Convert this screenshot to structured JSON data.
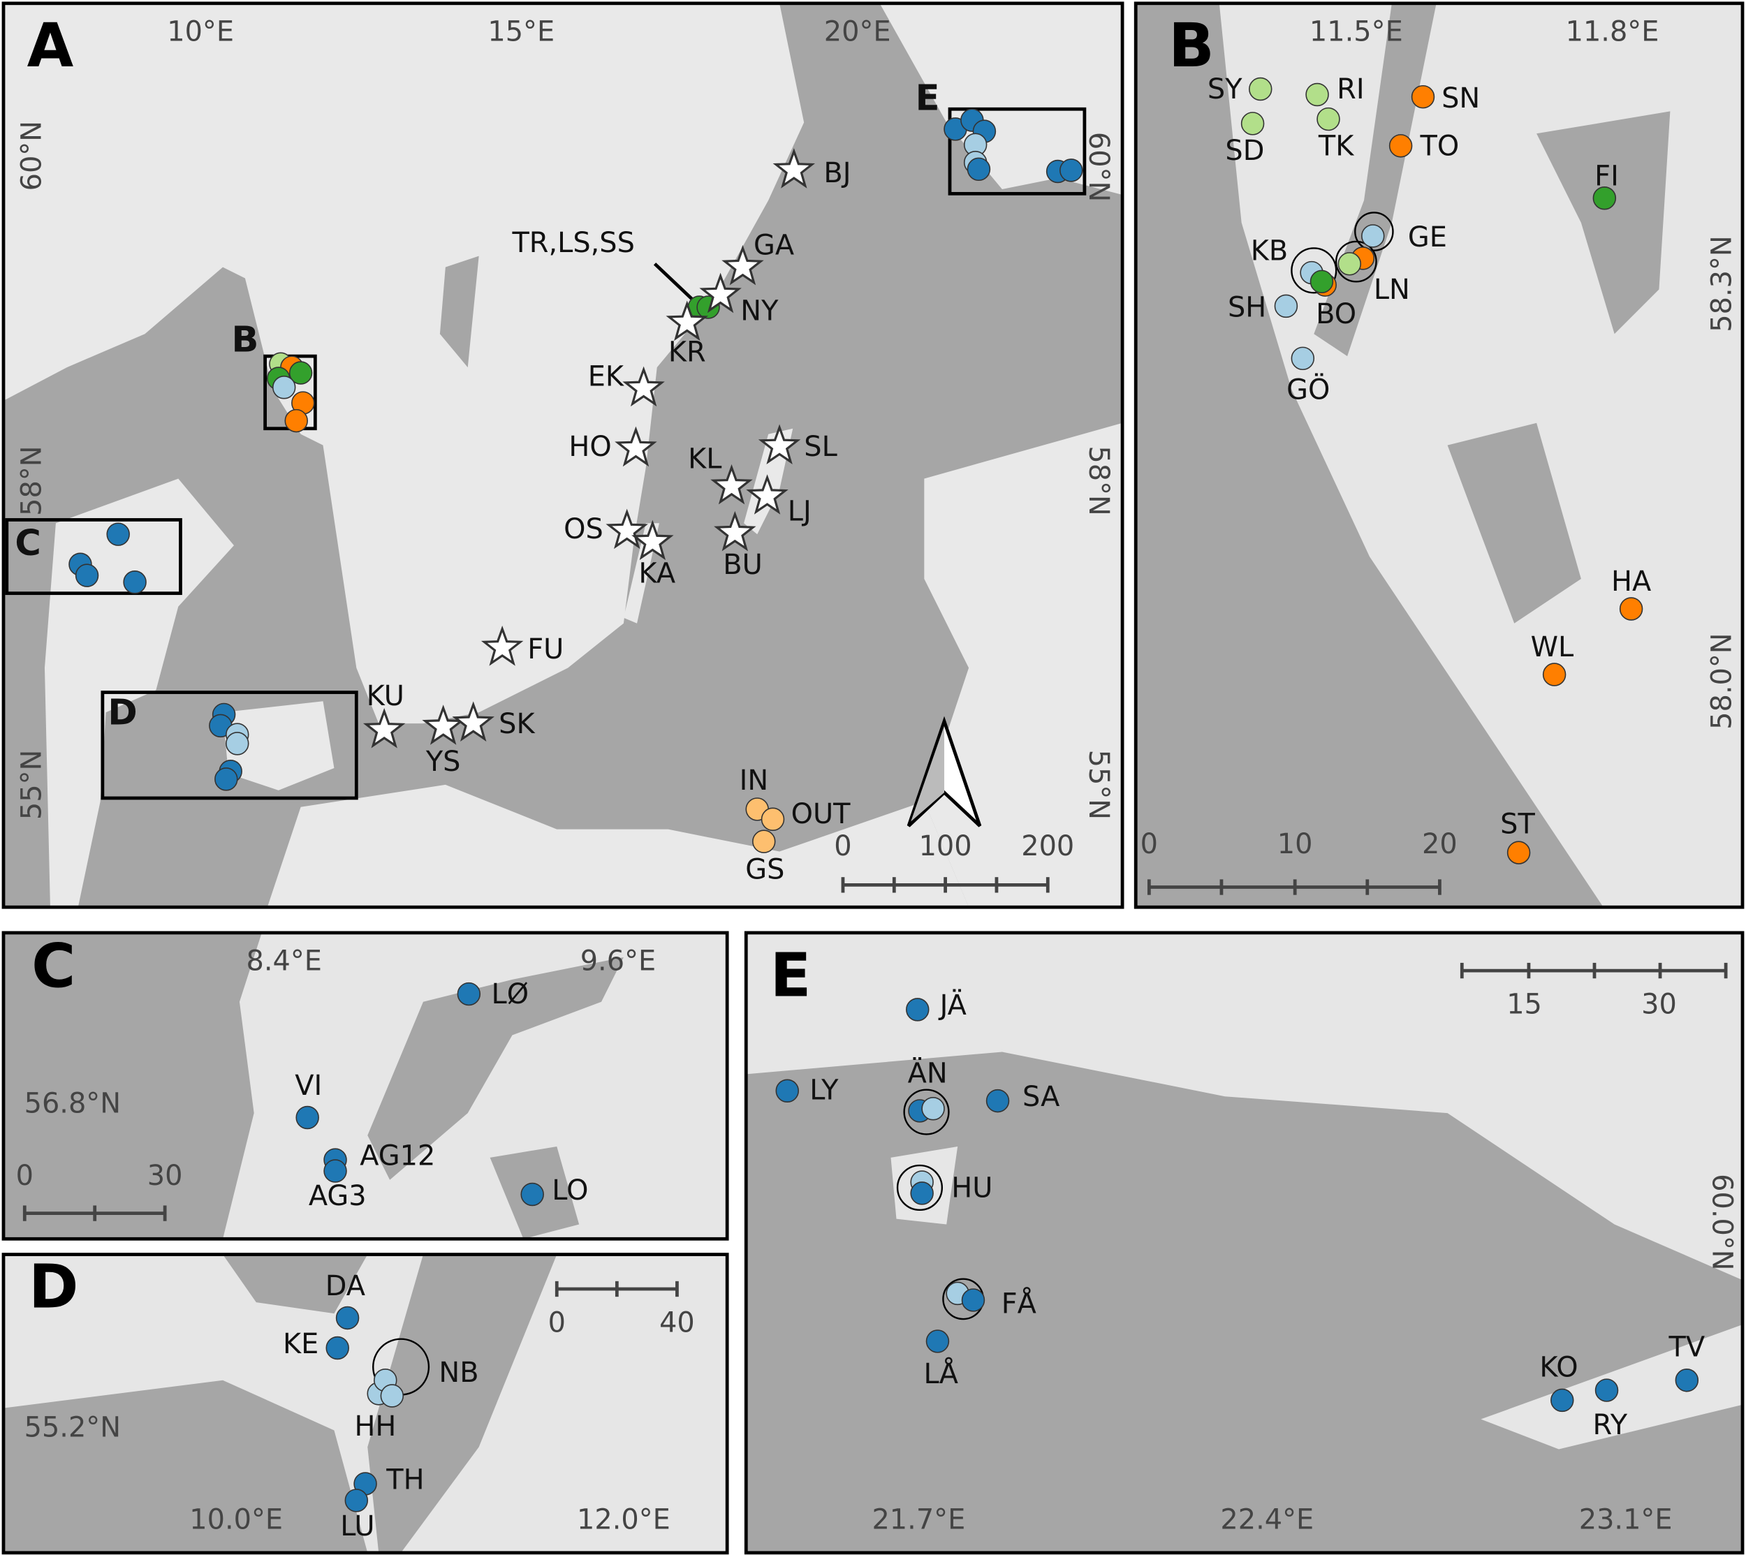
{
  "panels": [
    {
      "letter": "A",
      "lon_labels": [
        "10°E",
        "15°E",
        "20°E"
      ],
      "lat_labels": [
        "60°N",
        "58°N",
        "55°N",
        "60°N",
        "58°N",
        "55°N"
      ],
      "inset_labels": [
        "B",
        "C",
        "D",
        "E"
      ],
      "stars": [
        "BJ",
        "GA",
        "NY",
        "KR",
        "TR,LS,SS",
        "EK",
        "HO",
        "KL",
        "SL",
        "LJ",
        "OS",
        "KA",
        "BU",
        "FU",
        "KU",
        "YS",
        "SK"
      ],
      "sites": [
        {
          "label": "IN",
          "color": "#fdbf6f"
        },
        {
          "label": "OUT",
          "color": "#fdbf6f"
        },
        {
          "label": "GS",
          "color": "#fdbf6f"
        }
      ],
      "scale_labels": [
        "0",
        "100",
        "200"
      ]
    },
    {
      "letter": "B",
      "lon_labels": [
        "11.5°E",
        "11.8°E"
      ],
      "lat_labels": [
        "58.3°N",
        "58.0°N"
      ],
      "sites": [
        {
          "label": "SY",
          "color": "#b2df8a"
        },
        {
          "label": "RI",
          "color": "#b2df8a"
        },
        {
          "label": "SN",
          "color": "#ff7f00"
        },
        {
          "label": "SD",
          "color": "#b2df8a"
        },
        {
          "label": "TK",
          "color": "#b2df8a"
        },
        {
          "label": "TO",
          "color": "#ff7f00"
        },
        {
          "label": "FI",
          "color": "#33a02c"
        },
        {
          "label": "GE",
          "color": "#a6cee3"
        },
        {
          "label": "KB",
          "color": "#a6cee3"
        },
        {
          "label": "LN",
          "color": "#b2df8a"
        },
        {
          "label": "SH",
          "color": "#a6cee3"
        },
        {
          "label": "BO",
          "color": "#33a02c"
        },
        {
          "label": "GÖ",
          "color": "#a6cee3"
        },
        {
          "label": "HA",
          "color": "#ff7f00"
        },
        {
          "label": "WL",
          "color": "#ff7f00"
        },
        {
          "label": "ST",
          "color": "#ff7f00"
        }
      ],
      "scale_labels": [
        "0",
        "10",
        "20"
      ]
    },
    {
      "letter": "C",
      "lon_labels": [
        "8.4°E",
        "9.6°E"
      ],
      "lat_labels": [
        "56.8°N"
      ],
      "sites": [
        {
          "label": "LØ",
          "color": "#1f78b4"
        },
        {
          "label": "VI",
          "color": "#1f78b4"
        },
        {
          "label": "AG12",
          "color": "#1f78b4"
        },
        {
          "label": "AG3",
          "color": "#1f78b4"
        },
        {
          "label": "LO",
          "color": "#1f78b4"
        }
      ],
      "scale_labels": [
        "0",
        "30"
      ]
    },
    {
      "letter": "D",
      "lon_labels": [
        "10.0°E",
        "12.0°E"
      ],
      "lat_labels": [
        "55.2°N"
      ],
      "sites": [
        {
          "label": "DA",
          "color": "#1f78b4"
        },
        {
          "label": "KE",
          "color": "#1f78b4"
        },
        {
          "label": "NB",
          "color": "#a6cee3"
        },
        {
          "label": "HH",
          "color": "#a6cee3"
        },
        {
          "label": "TH",
          "color": "#1f78b4"
        },
        {
          "label": "LU",
          "color": "#1f78b4"
        }
      ],
      "scale_labels": [
        "0",
        "40"
      ]
    },
    {
      "letter": "E",
      "lon_labels": [
        "21.7°E",
        "22.4°E",
        "23.1°E"
      ],
      "lat_labels": [
        "60.0°N"
      ],
      "sites": [
        {
          "label": "JÄ",
          "color": "#1f78b4"
        },
        {
          "label": "LY",
          "color": "#1f78b4"
        },
        {
          "label": "ÄN",
          "color": "#a6cee3"
        },
        {
          "label": "SA",
          "color": "#1f78b4"
        },
        {
          "label": "HU",
          "color": "#1f78b4"
        },
        {
          "label": "FÅ",
          "color": "#1f78b4"
        },
        {
          "label": "LÅ",
          "color": "#1f78b4"
        },
        {
          "label": "KO",
          "color": "#1f78b4"
        },
        {
          "label": "RY",
          "color": "#1f78b4"
        },
        {
          "label": "TV",
          "color": "#1f78b4"
        }
      ],
      "scale_labels": [
        "15",
        "30"
      ]
    }
  ]
}
